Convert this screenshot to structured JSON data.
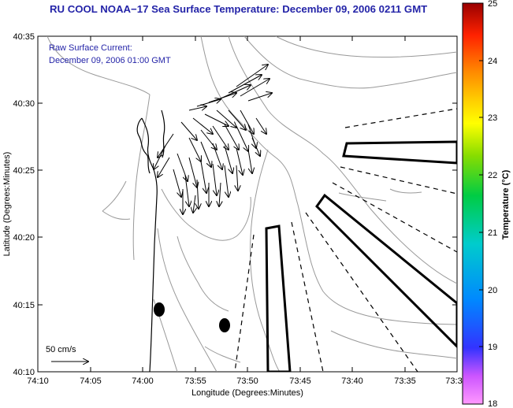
{
  "title": "RU COOL  NOAA−17  Sea Surface Temperature:  December 09, 2006 0211 GMT",
  "annotation": {
    "line1": "Raw Surface Current:",
    "line2": "December 09, 2006 01:00 GMT"
  },
  "scale_label": "50 cm/s",
  "axes": {
    "xlabel": "Longitude (Degrees:Minutes)",
    "ylabel": "Latitude (Degrees:Minutes)",
    "xticks": [
      "74:10",
      "74:05",
      "74:00",
      "73:55",
      "73:50",
      "73:45",
      "73:40",
      "73:35",
      "73:3"
    ],
    "yticks": [
      "40:35",
      "40:30",
      "40:25",
      "40:20",
      "40:15",
      "40:10"
    ]
  },
  "colorbar": {
    "label": "Temperature (°C)",
    "ticks": [
      "25",
      "24",
      "23",
      "22",
      "21",
      "20",
      "19",
      "18"
    ],
    "min": 18,
    "max": 25,
    "colors": [
      "#ff99ff",
      "#cc55ff",
      "#3333ff",
      "#0088ff",
      "#00cccc",
      "#00cc44",
      "#88dd00",
      "#ffff00",
      "#ffcc00",
      "#ff8800",
      "#ff2200",
      "#990000"
    ]
  },
  "markers": {
    "label_count": 2
  }
}
